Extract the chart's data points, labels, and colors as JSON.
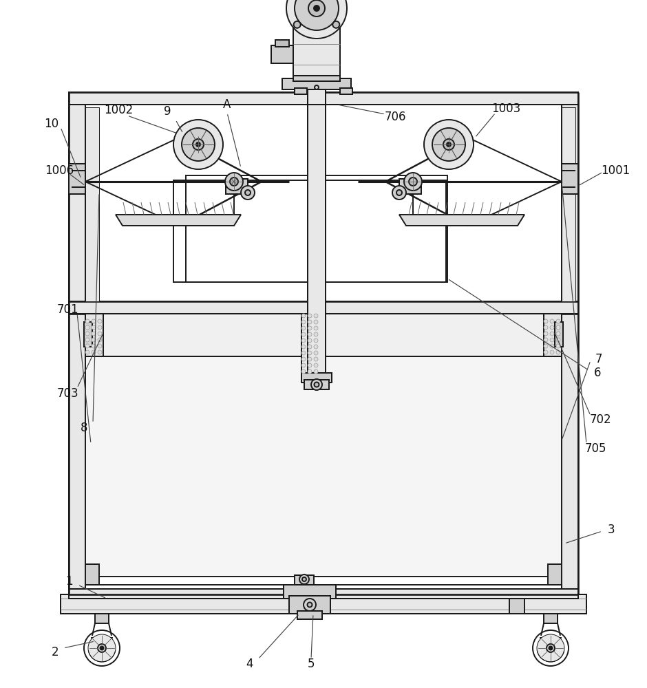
{
  "bg": "#ffffff",
  "lc": "#1a1a1a",
  "lw": 1.4,
  "tlw": 0.7,
  "fs": 12,
  "gray1": "#e8e8e8",
  "gray2": "#d0d0d0",
  "gray3": "#c0c0c0",
  "dot_color": "#b0b0b0"
}
